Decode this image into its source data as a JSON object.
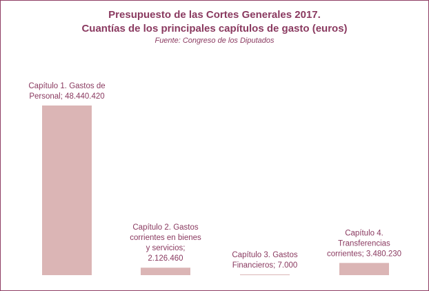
{
  "chart_data": {
    "type": "bar",
    "title": "Presupuesto de las Cortes Generales 2017.",
    "subtitle": "Cuantías de los principales capítulos de gasto (euros)",
    "source": "Fuente:  Congreso de los Diputados",
    "categories": [
      "Capítulo 1. Gastos de Personal",
      "Capítulo 2. Gastos corrientes en bienes y servicios",
      "Capítulo 3. Gastos Financieros",
      "Capítulo 4. Transferencias corrientes"
    ],
    "values": [
      48440420,
      2126460,
      7000,
      3480230
    ],
    "data_labels": [
      [
        "Capítulo 1. Gastos de",
        "Personal; 48.440.420"
      ],
      [
        "Capítulo 2. Gastos",
        "corrientes en bienes",
        "y servicios;",
        "2.126.460"
      ],
      [
        "Capítulo 3. Gastos",
        "Financieros; 7.000"
      ],
      [
        "Capítulo 4.",
        "Transferencias",
        "corrientes; 3.480.230"
      ]
    ],
    "bar_color": "#dbb5b5",
    "text_color": "#8a3a60",
    "grid": false,
    "legend": "none"
  }
}
